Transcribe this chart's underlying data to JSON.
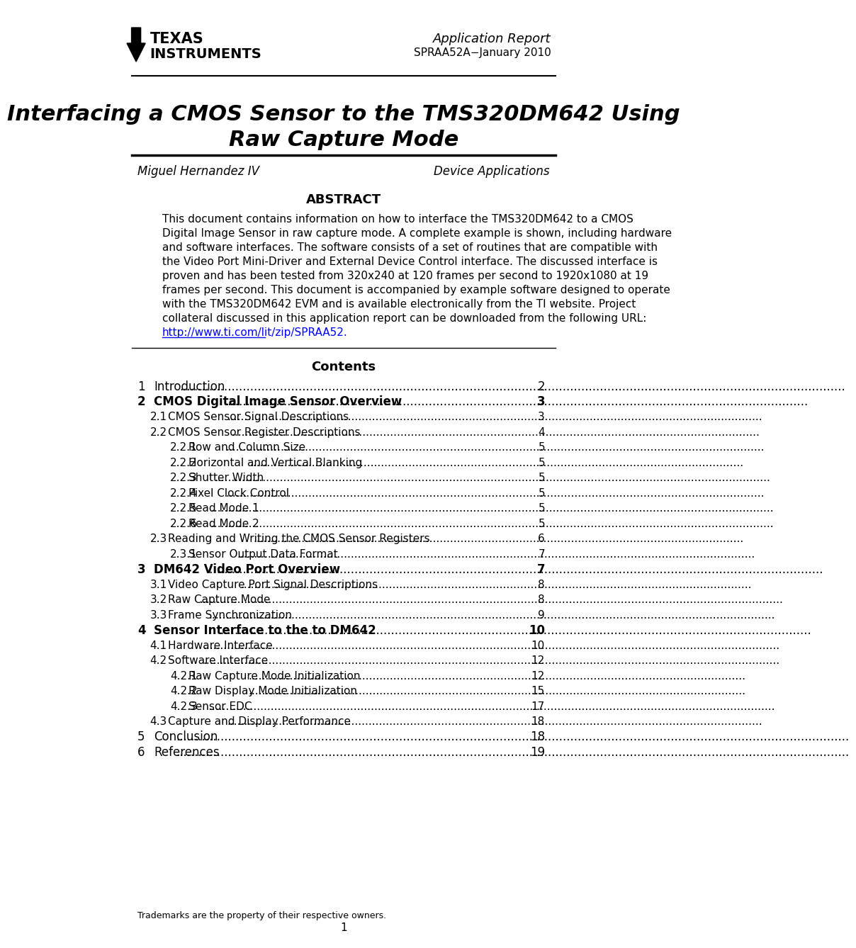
{
  "page_bg": "#ffffff",
  "header": {
    "app_report_text": "Application Report",
    "app_report_subtext": "SPRAA52A−January 2010",
    "ti_logo_text_line1": "TEXAS",
    "ti_logo_text_line2": "INSTRUMENTS"
  },
  "title_line1": "Interfacing a CMOS Sensor to the TMS320DM642 Using",
  "title_line2": "Raw Capture Mode",
  "author": "Miguel Hernandez IV",
  "role": "Device Applications",
  "abstract_heading": "ABSTRACT",
  "abstract_lines": [
    "This document contains information on how to interface the TMS320DM642 to a CMOS",
    "Digital Image Sensor in raw capture mode. A complete example is shown, including hardware",
    "and software interfaces. The software consists of a set of routines that are compatible with",
    "the Video Port Mini-Driver and External Device Control interface. The discussed interface is",
    "proven and has been tested from 320x240 at 120 frames per second to 1920x1080 at 19",
    "frames per second. This document is accompanied by example software designed to operate",
    "with the TMS320DM642 EVM and is available electronically from the TI website. Project",
    "collateral discussed in this application report can be downloaded from the following URL:"
  ],
  "abstract_url": "http://www.ti.com/lit/zip/SPRAA52.",
  "contents_heading": "Contents",
  "toc_entries": [
    {
      "num": "1",
      "title": "Introduction",
      "page": "2",
      "bold": false,
      "indent": 0
    },
    {
      "num": "2",
      "title": "CMOS Digital Image Sensor Overview",
      "page": "3",
      "bold": true,
      "indent": 0
    },
    {
      "num": "2.1",
      "title": "CMOS Sensor Signal Descriptions",
      "page": "3",
      "bold": false,
      "indent": 1
    },
    {
      "num": "2.2",
      "title": "CMOS Sensor Register Descriptions",
      "page": "4",
      "bold": false,
      "indent": 1
    },
    {
      "num": "2.2.1",
      "title": "Row and Column Size",
      "page": "5",
      "bold": false,
      "indent": 2
    },
    {
      "num": "2.2.2",
      "title": "Horizontal and Vertical Blanking",
      "page": "5",
      "bold": false,
      "indent": 2
    },
    {
      "num": "2.2.3",
      "title": "Shutter Width",
      "page": "5",
      "bold": false,
      "indent": 2
    },
    {
      "num": "2.2.4",
      "title": "Pixel Clock Control",
      "page": "5",
      "bold": false,
      "indent": 2
    },
    {
      "num": "2.2.5",
      "title": "Read Mode 1",
      "page": "5",
      "bold": false,
      "indent": 2
    },
    {
      "num": "2.2.6",
      "title": "Read Mode 2",
      "page": "5",
      "bold": false,
      "indent": 2
    },
    {
      "num": "2.3",
      "title": "Reading and Writing the CMOS Sensor Registers",
      "page": "6",
      "bold": false,
      "indent": 1
    },
    {
      "num": "2.3.1",
      "title": "Sensor Output Data Format",
      "page": "7",
      "bold": false,
      "indent": 2
    },
    {
      "num": "3",
      "title": "DM642 Video Port Overview",
      "page": "7",
      "bold": true,
      "indent": 0
    },
    {
      "num": "3.1",
      "title": "Video Capture Port Signal Descriptions",
      "page": "8",
      "bold": false,
      "indent": 1
    },
    {
      "num": "3.2",
      "title": "Raw Capture Mode",
      "page": "8",
      "bold": false,
      "indent": 1
    },
    {
      "num": "3.3",
      "title": "Frame Synchronization",
      "page": "9",
      "bold": false,
      "indent": 1
    },
    {
      "num": "4",
      "title": "Sensor Interface to the to DM642",
      "page": "10",
      "bold": true,
      "indent": 0
    },
    {
      "num": "4.1",
      "title": "Hardware Interface",
      "page": "10",
      "bold": false,
      "indent": 1
    },
    {
      "num": "4.2",
      "title": "Software Interface",
      "page": "12",
      "bold": false,
      "indent": 1
    },
    {
      "num": "4.2.1",
      "title": "Raw Capture Mode Initialization",
      "page": "12",
      "bold": false,
      "indent": 2
    },
    {
      "num": "4.2.2",
      "title": "Raw Display Mode Initialization",
      "page": "15",
      "bold": false,
      "indent": 2
    },
    {
      "num": "4.2.3",
      "title": "Sensor EDC",
      "page": "17",
      "bold": false,
      "indent": 2
    },
    {
      "num": "4.3",
      "title": "Capture and Display Performance",
      "page": "18",
      "bold": false,
      "indent": 1
    },
    {
      "num": "5",
      "title": "Conclusion",
      "page": "18",
      "bold": false,
      "indent": 0
    },
    {
      "num": "6",
      "title": "References",
      "page": "19",
      "bold": false,
      "indent": 0
    }
  ],
  "footer_text": "Trademarks are the property of their respective owners.",
  "page_number": "1"
}
